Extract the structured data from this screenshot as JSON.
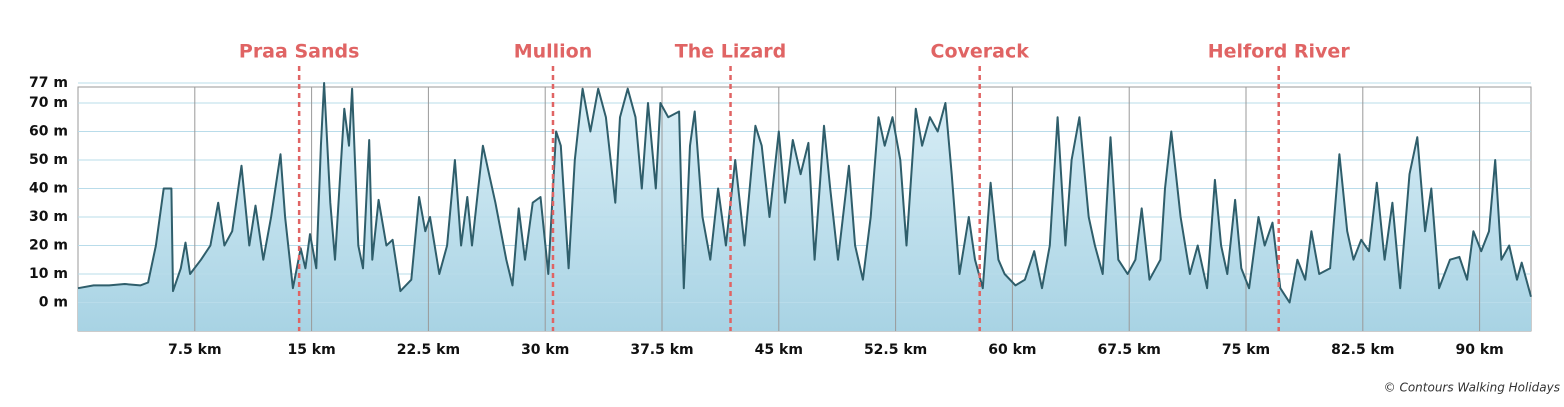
{
  "chart_data": {
    "type": "area",
    "x": [
      0,
      1,
      2,
      3,
      4,
      4.5,
      5,
      5.5,
      6,
      6.1,
      6.6,
      6.9,
      7.2,
      7.9,
      8.5,
      9.0,
      9.4,
      9.9,
      10.5,
      11.0,
      11.4,
      11.9,
      12.4,
      13.0,
      13.3,
      13.8,
      14.3,
      14.6,
      14.9,
      15.3,
      15.6,
      15.8,
      16.2,
      16.5,
      17.1,
      17.4,
      17.6,
      18.0,
      18.3,
      18.7,
      18.9,
      19.3,
      19.8,
      20.2,
      20.7,
      21.4,
      21.9,
      22.3,
      22.6,
      23.2,
      23.7,
      24.2,
      24.6,
      25.0,
      25.3,
      26.0,
      26.4,
      26.8,
      27.5,
      27.9,
      28.3,
      28.7,
      29.2,
      29.7,
      30.2,
      30.7,
      31.0,
      31.5,
      31.9,
      32.4,
      32.9,
      33.4,
      33.9,
      34.5,
      34.8,
      35.3,
      35.8,
      36.2,
      36.6,
      37.1,
      37.4,
      37.9,
      38.6,
      38.9,
      39.3,
      39.6,
      40.1,
      40.6,
      41.1,
      41.6,
      42.2,
      42.8,
      43.5,
      43.9,
      44.4,
      45.0,
      45.4,
      45.9,
      46.4,
      46.9,
      47.3,
      47.9,
      48.3,
      48.8,
      49.5,
      49.9,
      50.4,
      50.9,
      51.4,
      51.8,
      52.3,
      52.8,
      53.2,
      53.8,
      54.2,
      54.7,
      55.2,
      55.7,
      56.1,
      56.6,
      57.2,
      57.6,
      58.1,
      58.6,
      59.1,
      59.5,
      60.2,
      60.8,
      61.4,
      61.9,
      62.4,
      62.9,
      63.4,
      63.8,
      64.3,
      64.9,
      65.3,
      65.8,
      66.3,
      66.8,
      67.4,
      67.9,
      68.3,
      68.8,
      69.5,
      69.8,
      70.2,
      70.8,
      71.4,
      71.9,
      72.5,
      73.0,
      73.4,
      73.8,
      74.3,
      74.7,
      75.2,
      75.8,
      76.2,
      76.7,
      77.2,
      77.8,
      78.3,
      78.8,
      79.2,
      79.7,
      80.4,
      81.0,
      81.5,
      81.9,
      82.4,
      82.9,
      83.4,
      83.9,
      84.4,
      84.9,
      85.5,
      86.0,
      86.5,
      86.9,
      87.4,
      88.1,
      88.7,
      89.2,
      89.6,
      90.1,
      90.6,
      91.0,
      91.4,
      91.9,
      92.4,
      92.7,
      93.3
    ],
    "values": [
      5,
      6,
      6,
      6.5,
      6,
      7,
      20,
      40,
      40,
      4,
      12,
      21,
      10,
      15,
      20,
      35,
      20,
      25,
      48,
      20,
      34,
      15,
      30,
      52,
      30,
      5,
      19,
      12,
      24,
      12,
      55,
      77,
      35,
      15,
      68,
      55,
      75,
      20,
      12,
      57,
      15,
      36,
      20,
      22,
      4,
      8,
      37,
      25,
      30,
      10,
      20,
      50,
      20,
      37,
      20,
      55,
      45,
      35,
      15,
      6,
      33,
      15,
      35,
      37,
      10,
      60,
      55,
      12,
      50,
      75,
      60,
      75,
      65,
      35,
      65,
      75,
      65,
      40,
      70,
      40,
      70,
      65,
      67,
      5,
      55,
      67,
      30,
      15,
      40,
      20,
      50,
      20,
      62,
      55,
      30,
      60,
      35,
      57,
      45,
      56,
      15,
      62,
      40,
      15,
      48,
      20,
      8,
      30,
      65,
      55,
      65,
      50,
      20,
      68,
      55,
      65,
      60,
      70,
      45,
      10,
      30,
      15,
      5,
      42,
      15,
      10,
      6,
      8,
      18,
      5,
      20,
      65,
      20,
      50,
      65,
      30,
      20,
      10,
      58,
      15,
      10,
      15,
      33,
      8,
      15,
      40,
      60,
      30,
      10,
      20,
      5,
      43,
      20,
      10,
      36,
      12,
      5,
      30,
      20,
      28,
      5,
      0,
      15,
      8,
      25,
      10,
      12,
      52,
      25,
      15,
      22,
      18,
      42,
      15,
      35,
      5,
      45,
      58,
      25,
      40,
      5,
      15,
      16,
      8,
      25,
      18,
      25,
      50,
      15,
      20,
      8,
      14,
      2
    ],
    "line_color": "#2f5e6b",
    "fill_top": "#dbeff7",
    "fill_bottom": "#a8d3e4",
    "xlim": [
      0,
      93.3
    ],
    "ylim": [
      -10,
      77
    ],
    "xticks": [
      {
        "value": 7.5,
        "label": "7.5 km"
      },
      {
        "value": 15,
        "label": "15 km"
      },
      {
        "value": 22.5,
        "label": "22.5 km"
      },
      {
        "value": 30,
        "label": "30 km"
      },
      {
        "value": 37.5,
        "label": "37.5 km"
      },
      {
        "value": 45,
        "label": "45 km"
      },
      {
        "value": 52.5,
        "label": "52.5 km"
      },
      {
        "value": 60,
        "label": "60 km"
      },
      {
        "value": 67.5,
        "label": "67.5 km"
      },
      {
        "value": 75,
        "label": "75 km"
      },
      {
        "value": 82.5,
        "label": "82.5 km"
      },
      {
        "value": 90,
        "label": "90 km"
      }
    ],
    "yticks": [
      {
        "value": 0,
        "label": "0 m"
      },
      {
        "value": 10,
        "label": "10 m"
      },
      {
        "value": 20,
        "label": "20 m"
      },
      {
        "value": 30,
        "label": "30 m"
      },
      {
        "value": 40,
        "label": "40 m"
      },
      {
        "value": 50,
        "label": "50 m"
      },
      {
        "value": 60,
        "label": "60 m"
      },
      {
        "value": 70,
        "label": "70 m"
      },
      {
        "value": 77,
        "label": "77 m"
      }
    ],
    "grid": true,
    "marker_color": "#e06464",
    "markers": [
      {
        "label": "Praa Sands",
        "x": 14.2
      },
      {
        "label": "Mullion",
        "x": 30.5
      },
      {
        "label": "The Lizard",
        "x": 41.9
      },
      {
        "label": "Coverack",
        "x": 57.9
      },
      {
        "label": "Helford River",
        "x": 77.1
      }
    ],
    "credit": "© Contours Walking Holidays"
  }
}
